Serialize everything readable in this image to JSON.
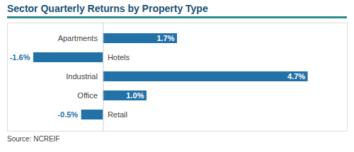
{
  "chart_data": {
    "type": "bar",
    "orientation": "horizontal",
    "title": "Sector Quarterly Returns by Property Type",
    "annotations": [
      "Source: NCREIF"
    ],
    "categories": [
      "Apartments",
      "Hotels",
      "Industrial",
      "Office",
      "Retail"
    ],
    "values": [
      1.7,
      -1.6,
      4.7,
      1.0,
      -0.5
    ],
    "value_labels": [
      "1.7%",
      "-1.6%",
      "4.7%",
      "1.0%",
      "-0.5%"
    ],
    "color": "#2272a8",
    "xlim": [
      -2.2,
      5.6
    ],
    "data_labels": true,
    "tick_labels": false,
    "grid": false
  }
}
